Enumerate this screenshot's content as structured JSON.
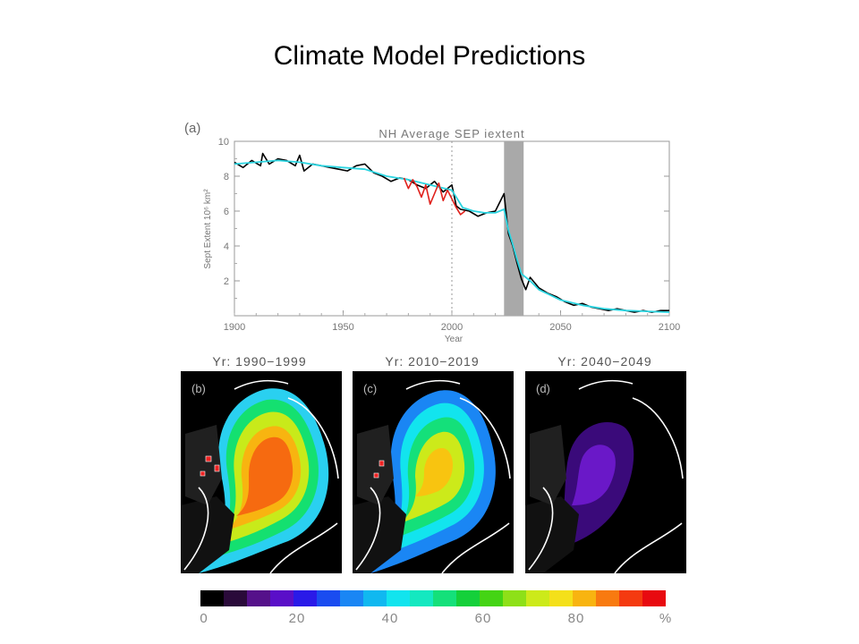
{
  "slide": {
    "title": "Climate Model Predictions"
  },
  "chart_data": [
    {
      "type": "line",
      "panel_label": "(a)",
      "title": "NH Average SEP iextent",
      "xlabel": "Year",
      "ylabel": "Sept Extent 10⁶ km²",
      "xlim": [
        1900,
        2100
      ],
      "ylim": [
        0,
        10
      ],
      "xticks": [
        1900,
        1950,
        2000,
        2050,
        2100
      ],
      "yticks": [
        2,
        4,
        6,
        8,
        10
      ],
      "marker_line_year": 2000,
      "shaded_band": [
        2024,
        2033
      ],
      "series": [
        {
          "color": "#000000",
          "x": [
            1900,
            1904,
            1908,
            1912,
            1913,
            1916,
            1920,
            1924,
            1928,
            1930,
            1932,
            1936,
            1940,
            1944,
            1948,
            1952,
            1956,
            1960,
            1964,
            1968,
            1972,
            1976,
            1980,
            1984,
            1988,
            1992,
            1996,
            2000,
            2002,
            2004,
            2008,
            2012,
            2016,
            2020,
            2024,
            2026,
            2028,
            2030,
            2032,
            2034,
            2036,
            2040,
            2044,
            2048,
            2052,
            2056,
            2060,
            2064,
            2068,
            2072,
            2076,
            2080,
            2084,
            2088,
            2092,
            2096,
            2100
          ],
          "y": [
            8.8,
            8.5,
            8.9,
            8.6,
            9.3,
            8.7,
            9.0,
            8.9,
            8.6,
            9.2,
            8.3,
            8.7,
            8.6,
            8.5,
            8.4,
            8.3,
            8.6,
            8.7,
            8.2,
            8.0,
            7.7,
            7.9,
            7.8,
            7.5,
            7.3,
            7.7,
            7.1,
            7.5,
            6.3,
            6.1,
            6.0,
            5.7,
            5.9,
            6.0,
            7.0,
            4.7,
            4.0,
            3.0,
            2.1,
            1.5,
            2.2,
            1.6,
            1.3,
            1.1,
            0.8,
            0.6,
            0.7,
            0.5,
            0.4,
            0.3,
            0.4,
            0.3,
            0.2,
            0.3,
            0.2,
            0.3,
            0.3
          ]
        },
        {
          "color": "#2bd4e0",
          "x": [
            1900,
            1910,
            1920,
            1930,
            1940,
            1950,
            1960,
            1970,
            1980,
            1990,
            2000,
            2005,
            2010,
            2015,
            2020,
            2024,
            2026,
            2028,
            2030,
            2032,
            2036,
            2040,
            2045,
            2050,
            2060,
            2070,
            2080,
            2090,
            2100
          ],
          "y": [
            8.7,
            8.8,
            8.9,
            8.8,
            8.6,
            8.5,
            8.4,
            8.0,
            7.8,
            7.5,
            7.2,
            6.2,
            6.0,
            5.9,
            5.9,
            6.1,
            4.9,
            4.1,
            3.2,
            2.4,
            2.0,
            1.5,
            1.2,
            0.9,
            0.6,
            0.4,
            0.3,
            0.25,
            0.2
          ]
        },
        {
          "color": "#e0201b",
          "x": [
            1978,
            1980,
            1982,
            1984,
            1986,
            1988,
            1990,
            1992,
            1994,
            1996,
            1998,
            2000,
            2002,
            2004,
            2006
          ],
          "y": [
            7.9,
            7.3,
            7.8,
            7.4,
            6.8,
            7.5,
            6.4,
            7.0,
            7.6,
            6.6,
            7.2,
            6.7,
            6.2,
            5.8,
            6.0
          ]
        }
      ]
    },
    {
      "type": "heatmap",
      "panel_label": "(b)",
      "title": "Yr: 1990−1999",
      "ice_concentration_peak_percent": 90,
      "color_stops_percent": [
        95,
        90,
        80,
        70,
        60,
        50,
        40,
        30,
        20,
        10
      ]
    },
    {
      "type": "heatmap",
      "panel_label": "(c)",
      "title": "Yr: 2010−2019",
      "ice_concentration_peak_percent": 80,
      "color_stops_percent": [
        80,
        70,
        60,
        50,
        40,
        30,
        20,
        10
      ]
    },
    {
      "type": "heatmap",
      "panel_label": "(d)",
      "title": "Yr: 2040−2049",
      "ice_concentration_peak_percent": 15,
      "color_stops_percent": [
        15,
        10,
        5
      ]
    }
  ],
  "colorbar": {
    "unit": "%",
    "ticks": [
      "0",
      "20",
      "40",
      "60",
      "80"
    ],
    "colors": [
      "#000000",
      "#2a0a3a",
      "#55118a",
      "#5a0fc8",
      "#2a1ae8",
      "#1a4cf0",
      "#1a86f4",
      "#10b8f0",
      "#12e4ee",
      "#14e8c0",
      "#14e07a",
      "#14d03a",
      "#44d414",
      "#8ee018",
      "#ccea1a",
      "#f4e01a",
      "#f8b410",
      "#f87a10",
      "#f43a10",
      "#e80a10"
    ]
  }
}
